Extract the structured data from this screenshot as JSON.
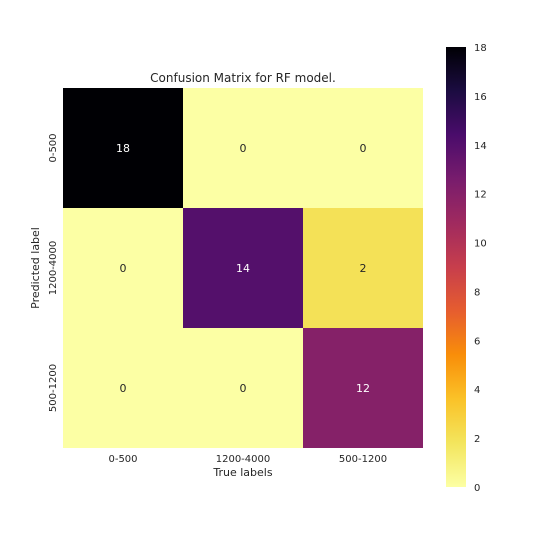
{
  "chart_data": {
    "type": "heatmap",
    "title": "Confusion Matrix for RF model.",
    "xlabel": "True labels",
    "ylabel": "Predicted label",
    "x_categories": [
      "0-500",
      "1200-4000",
      "500-1200"
    ],
    "y_categories": [
      "0-500",
      "1200-4000",
      "500-1200"
    ],
    "values": [
      [
        18,
        0,
        0
      ],
      [
        0,
        14,
        2
      ],
      [
        0,
        0,
        12
      ]
    ],
    "colormap": "inferno_r",
    "colorbar": {
      "range": [
        0,
        18
      ],
      "ticks": [
        "0",
        "2",
        "4",
        "6",
        "8",
        "10",
        "12",
        "14",
        "16",
        "18"
      ]
    },
    "grid": false
  }
}
